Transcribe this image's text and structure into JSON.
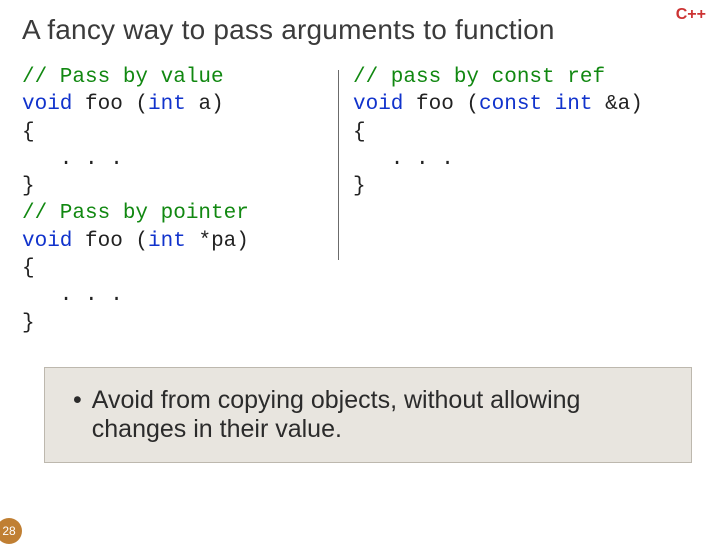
{
  "badge": "C++",
  "title": "A fancy way to pass arguments to function",
  "code_left": {
    "l1": "// Pass by value",
    "l2a": "void",
    "l2b": " foo (",
    "l2c": "int",
    "l2d": " a)",
    "l3": "{",
    "l4": "   . . .",
    "l5": "}",
    "l6": "// Pass by pointer",
    "l7a": "void",
    "l7b": " foo (",
    "l7c": "int",
    "l7d": " *pa)",
    "l8": "{",
    "l9": "   . . .",
    "l10": "}"
  },
  "code_right": {
    "l1": "// pass by const ref",
    "l2a": "void",
    "l2b": " foo (",
    "l2c": "const int ",
    "l2d": "&a)",
    "l3": "{",
    "l4": "   . . .",
    "l5": "}"
  },
  "bullet": "Avoid from copying objects, without allowing changes in their value.",
  "page": "28",
  "colors": {
    "keyword": "#1133cc",
    "comment": "#118811",
    "badge": "#cc3333",
    "note_bg": "#e8e5df",
    "page_bg": "#c07f33"
  }
}
